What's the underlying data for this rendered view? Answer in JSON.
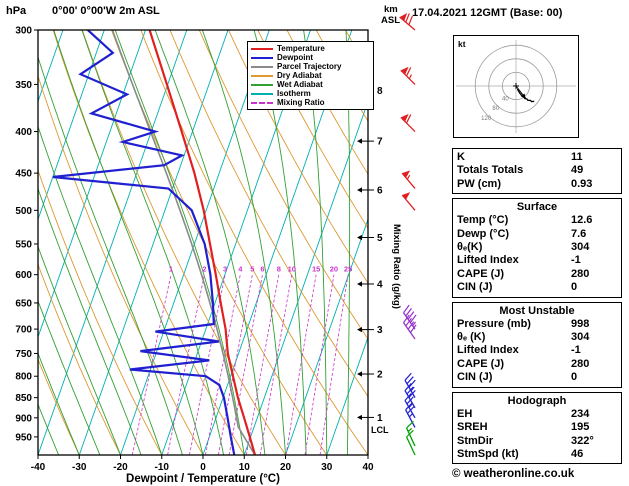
{
  "colors": {
    "temperature": "#e02020",
    "dewpoint": "#2020d0",
    "parcel": "#8a8a8a",
    "dry_adiabat": "#dd9933",
    "wet_adiabat": "#33a033",
    "isotherm": "#00b0b0",
    "mixing_ratio": "#cc33cc",
    "barb_high": "#e02020",
    "barb_mid": "#9632c8",
    "barb_low": "#2020d0",
    "barb_sfc": "#00a000",
    "axis": "#000000"
  },
  "header": {
    "pressure_unit": "hPa",
    "station": "0°00' 0°00'W 2m ASL",
    "altitude_unit_line1": "km",
    "altitude_unit_line2": "ASL",
    "date_title": "17.04.2021 12GMT (Base: 00)"
  },
  "axes": {
    "xlabel": "Dewpoint / Temperature (°C)",
    "right_label": "Mixing Ratio (g/kg)",
    "pressure_ticks": [
      300,
      350,
      400,
      450,
      500,
      550,
      600,
      650,
      700,
      750,
      800,
      850,
      900,
      950
    ],
    "temp_ticks": [
      -40,
      -30,
      -20,
      -10,
      0,
      10,
      20,
      30,
      40
    ],
    "km_ticks": [
      1,
      2,
      3,
      4,
      5,
      6,
      7,
      8
    ],
    "lcl_label": "LCL"
  },
  "legend": [
    {
      "label": "Temperature",
      "color": "#e02020",
      "dash": ""
    },
    {
      "label": "Dewpoint",
      "color": "#2020d0",
      "dash": ""
    },
    {
      "label": "Parcel Trajectory",
      "color": "#8a8a8a",
      "dash": ""
    },
    {
      "label": "Dry Adiabat",
      "color": "#dd9933",
      "dash": ""
    },
    {
      "label": "Wet Adiabat",
      "color": "#33a033",
      "dash": ""
    },
    {
      "label": "Isotherm",
      "color": "#00b0b0",
      "dash": ""
    },
    {
      "label": "Mixing Ratio",
      "color": "#cc33cc",
      "dash": "dashed"
    }
  ],
  "chart_data": {
    "type": "line",
    "title": "0°00' 0°00'W 2m ASL — 17.04.2021 12GMT (Base: 00)",
    "xlabel": "Dewpoint / Temperature (°C)",
    "ylabel": "hPa",
    "x_range": [
      -40,
      40
    ],
    "pressure_range": [
      300,
      1000
    ],
    "isotherms": {
      "start": -80,
      "end": 40,
      "step": 10
    },
    "dry_adiabats_c": {
      "start": -40,
      "end": 120,
      "step": 10
    },
    "wet_adiabats_c": {
      "start": -40,
      "end": 40,
      "step": 5
    },
    "mixing_ratio_values": [
      1,
      2,
      3,
      4,
      5,
      6,
      8,
      10,
      15,
      20,
      25
    ],
    "series": [
      {
        "name": "Temperature",
        "points_p_t": [
          [
            1000,
            12.6
          ],
          [
            950,
            9.8
          ],
          [
            900,
            6.8
          ],
          [
            850,
            3.6
          ],
          [
            800,
            0.6
          ],
          [
            750,
            -2.6
          ],
          [
            700,
            -5.2
          ],
          [
            650,
            -8.6
          ],
          [
            600,
            -12.2
          ],
          [
            550,
            -16.2
          ],
          [
            500,
            -20.6
          ],
          [
            450,
            -26.0
          ],
          [
            400,
            -32.6
          ],
          [
            350,
            -40.2
          ],
          [
            300,
            -49.0
          ]
        ]
      },
      {
        "name": "Dewpoint",
        "points_p_t": [
          [
            1000,
            7.6
          ],
          [
            950,
            5.2
          ],
          [
            900,
            2.8
          ],
          [
            850,
            0.2
          ],
          [
            820,
            -2.0
          ],
          [
            800,
            -6.0
          ],
          [
            785,
            -25.0
          ],
          [
            765,
            -6.5
          ],
          [
            745,
            -24.0
          ],
          [
            725,
            -5.8
          ],
          [
            705,
            -22.0
          ],
          [
            690,
            -8.5
          ],
          [
            650,
            -10.5
          ],
          [
            600,
            -13.5
          ],
          [
            550,
            -17.5
          ],
          [
            500,
            -23.5
          ],
          [
            470,
            -31.0
          ],
          [
            455,
            -60.0
          ],
          [
            440,
            -34.0
          ],
          [
            428,
            -30.5
          ],
          [
            412,
            -46.0
          ],
          [
            400,
            -39.0
          ],
          [
            380,
            -56.0
          ],
          [
            360,
            -49.0
          ],
          [
            340,
            -62.0
          ],
          [
            320,
            -56.0
          ],
          [
            300,
            -64.0
          ]
        ]
      }
    ],
    "surface": {
      "temp_c": 12.6,
      "dewp_c": 7.6,
      "pressure": 1000
    },
    "lcl_pressure": 930,
    "km_pressures": {
      "1": 899,
      "2": 795,
      "3": 701,
      "4": 616,
      "5": 540,
      "6": 472,
      "7": 411,
      "8": 356
    },
    "wind_barbs": [
      {
        "p": 300,
        "dir": 310,
        "spd": 70,
        "band": "high"
      },
      {
        "p": 350,
        "dir": 315,
        "spd": 65,
        "band": "high"
      },
      {
        "p": 400,
        "dir": 315,
        "spd": 60,
        "band": "high"
      },
      {
        "p": 470,
        "dir": 320,
        "spd": 55,
        "band": "high"
      },
      {
        "p": 500,
        "dir": 320,
        "spd": 50,
        "band": "high"
      },
      {
        "p": 700,
        "dir": 325,
        "spd": 45,
        "band": "mid"
      },
      {
        "p": 720,
        "dir": 325,
        "spd": 40,
        "band": "mid"
      },
      {
        "p": 850,
        "dir": 330,
        "spd": 35,
        "band": "low"
      },
      {
        "p": 875,
        "dir": 330,
        "spd": 30,
        "band": "low"
      },
      {
        "p": 900,
        "dir": 330,
        "spd": 28,
        "band": "low"
      },
      {
        "p": 925,
        "dir": 332,
        "spd": 25,
        "band": "low"
      },
      {
        "p": 975,
        "dir": 335,
        "spd": 15,
        "band": "sfc"
      },
      {
        "p": 1000,
        "dir": 335,
        "spd": 10,
        "band": "sfc"
      }
    ]
  },
  "hodograph": {
    "unit_label": "kt",
    "rings": [
      40,
      80,
      120
    ],
    "storm_dir": 322,
    "storm_spd": 46
  },
  "tables": [
    {
      "header": null,
      "rows": [
        [
          "K",
          "11"
        ],
        [
          "Totals Totals",
          "49"
        ],
        [
          "PW (cm)",
          "0.93"
        ]
      ]
    },
    {
      "header": "Surface",
      "rows": [
        [
          "Temp (°C)",
          "12.6"
        ],
        [
          "Dewp (°C)",
          "7.6"
        ],
        [
          "θₑ(K)",
          "304"
        ],
        [
          "Lifted Index",
          "-1"
        ],
        [
          "CAPE (J)",
          "280"
        ],
        [
          "CIN (J)",
          "0"
        ]
      ]
    },
    {
      "header": "Most Unstable",
      "rows": [
        [
          "Pressure (mb)",
          "998"
        ],
        [
          "θₑ (K)",
          "304"
        ],
        [
          "Lifted Index",
          "-1"
        ],
        [
          "CAPE (J)",
          "280"
        ],
        [
          "CIN (J)",
          "0"
        ]
      ]
    },
    {
      "header": "Hodograph",
      "rows": [
        [
          "EH",
          "234"
        ],
        [
          "SREH",
          "195"
        ],
        [
          "StmDir",
          "322°"
        ],
        [
          "StmSpd (kt)",
          "46"
        ]
      ]
    }
  ],
  "footer": {
    "copyright": "© weatheronline.co.uk"
  }
}
